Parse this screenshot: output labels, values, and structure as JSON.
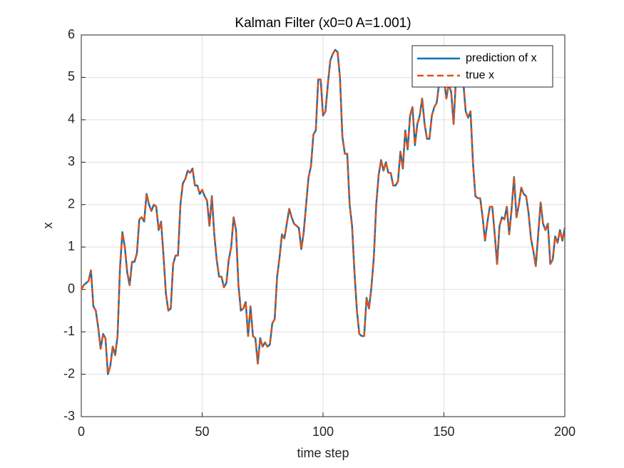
{
  "chart_data": {
    "type": "line",
    "title": "Kalman Filter (x0=0 A=1.001)",
    "x_label": "time step",
    "y_label": "x",
    "x": [
      0,
      1,
      2,
      3,
      4,
      5,
      6,
      7,
      8,
      9,
      10,
      11,
      12,
      13,
      14,
      15,
      16,
      17,
      18,
      19,
      20,
      21,
      22,
      23,
      24,
      25,
      26,
      27,
      28,
      29,
      30,
      31,
      32,
      33,
      34,
      35,
      36,
      37,
      38,
      39,
      40,
      41,
      42,
      43,
      44,
      45,
      46,
      47,
      48,
      49,
      50,
      51,
      52,
      53,
      54,
      55,
      56,
      57,
      58,
      59,
      60,
      61,
      62,
      63,
      64,
      65,
      66,
      67,
      68,
      69,
      70,
      71,
      72,
      73,
      74,
      75,
      76,
      77,
      78,
      79,
      80,
      81,
      82,
      83,
      84,
      85,
      86,
      87,
      88,
      89,
      90,
      91,
      92,
      93,
      94,
      95,
      96,
      97,
      98,
      99,
      100,
      101,
      102,
      103,
      104,
      105,
      106,
      107,
      108,
      109,
      110,
      111,
      112,
      113,
      114,
      115,
      116,
      117,
      118,
      119,
      120,
      121,
      122,
      123,
      124,
      125,
      126,
      127,
      128,
      129,
      130,
      131,
      132,
      133,
      134,
      135,
      136,
      137,
      138,
      139,
      140,
      141,
      142,
      143,
      144,
      145,
      146,
      147,
      148,
      149,
      150,
      151,
      152,
      153,
      154,
      155,
      156,
      157,
      158,
      159,
      160,
      161,
      162,
      163,
      164,
      165,
      166,
      167,
      168,
      169,
      170,
      171,
      172,
      173,
      174,
      175,
      176,
      177,
      178,
      179,
      180,
      181,
      182,
      183,
      184,
      185,
      186,
      187,
      188,
      189,
      190,
      191,
      192,
      193,
      194,
      195,
      196,
      197,
      198,
      199,
      200
    ],
    "series": [
      {
        "name": "prediction of x",
        "color": "#0072bd",
        "dashed": false,
        "values": [
          0,
          0.1,
          0.15,
          0.2,
          0.45,
          -0.4,
          -0.5,
          -0.9,
          -1.4,
          -1.05,
          -1.15,
          -2.0,
          -1.8,
          -1.35,
          -1.55,
          -1.1,
          0.5,
          1.35,
          1.0,
          0.4,
          0.1,
          0.65,
          0.65,
          0.85,
          1.65,
          1.7,
          1.6,
          2.25,
          2.0,
          1.85,
          2.0,
          1.95,
          1.4,
          1.6,
          0.8,
          -0.1,
          -0.5,
          -0.45,
          0.6,
          0.8,
          0.8,
          2.0,
          2.5,
          2.6,
          2.8,
          2.75,
          2.85,
          2.45,
          2.45,
          2.25,
          2.35,
          2.2,
          2.1,
          1.5,
          2.2,
          1.3,
          0.7,
          0.3,
          0.3,
          0.05,
          0.15,
          0.7,
          1.0,
          1.7,
          1.4,
          0.1,
          -0.5,
          -0.45,
          -0.3,
          -1.1,
          -0.4,
          -1.1,
          -1.15,
          -1.75,
          -1.15,
          -1.35,
          -1.25,
          -1.35,
          -1.3,
          -0.8,
          -0.7,
          0.3,
          0.75,
          1.3,
          1.2,
          1.55,
          1.9,
          1.7,
          1.55,
          1.5,
          1.45,
          0.95,
          1.35,
          2.0,
          2.65,
          2.9,
          3.65,
          3.75,
          4.95,
          4.95,
          4.1,
          4.2,
          4.85,
          5.4,
          5.55,
          5.65,
          5.6,
          5.0,
          3.6,
          3.2,
          3.2,
          2.0,
          1.5,
          0.4,
          -0.5,
          -1.05,
          -1.1,
          -1.1,
          -0.2,
          -0.45,
          0.05,
          0.75,
          2.0,
          2.7,
          3.05,
          2.8,
          3.0,
          2.75,
          2.75,
          2.45,
          2.45,
          2.55,
          3.25,
          2.85,
          3.75,
          3.3,
          4.1,
          4.3,
          3.4,
          3.9,
          4.1,
          4.5,
          3.9,
          3.55,
          3.55,
          4.1,
          4.3,
          4.4,
          4.85,
          4.9,
          5.0,
          4.5,
          4.85,
          4.65,
          3.9,
          5.0,
          4.8,
          5.0,
          4.9,
          4.2,
          4.05,
          4.2,
          3.0,
          2.2,
          2.15,
          2.15,
          1.7,
          1.15,
          1.6,
          1.95,
          1.95,
          1.3,
          0.6,
          1.5,
          1.7,
          1.65,
          1.95,
          1.3,
          1.9,
          2.65,
          1.7,
          2.0,
          2.4,
          2.25,
          2.2,
          1.8,
          1.2,
          0.9,
          0.55,
          1.3,
          2.05,
          1.55,
          1.4,
          1.55,
          0.6,
          0.7,
          1.25,
          1.1,
          1.4,
          1.15,
          1.45
        ]
      },
      {
        "name": "true x",
        "color": "#d95319",
        "dashed": true,
        "values": [
          0,
          0.1,
          0.15,
          0.2,
          0.45,
          -0.4,
          -0.5,
          -0.9,
          -1.4,
          -1.05,
          -1.15,
          -2.0,
          -1.8,
          -1.35,
          -1.55,
          -1.1,
          0.5,
          1.35,
          1.0,
          0.4,
          0.1,
          0.65,
          0.65,
          0.85,
          1.65,
          1.7,
          1.6,
          2.25,
          2.0,
          1.85,
          2.0,
          1.95,
          1.4,
          1.6,
          0.8,
          -0.1,
          -0.5,
          -0.45,
          0.6,
          0.8,
          0.8,
          2.0,
          2.5,
          2.6,
          2.8,
          2.75,
          2.85,
          2.45,
          2.45,
          2.25,
          2.35,
          2.2,
          2.1,
          1.5,
          2.2,
          1.3,
          0.7,
          0.3,
          0.3,
          0.05,
          0.15,
          0.7,
          1.0,
          1.7,
          1.4,
          0.1,
          -0.5,
          -0.45,
          -0.3,
          -1.1,
          -0.4,
          -1.1,
          -1.15,
          -1.75,
          -1.15,
          -1.35,
          -1.25,
          -1.35,
          -1.3,
          -0.8,
          -0.7,
          0.3,
          0.75,
          1.3,
          1.2,
          1.55,
          1.9,
          1.7,
          1.55,
          1.5,
          1.45,
          0.95,
          1.35,
          2.0,
          2.65,
          2.9,
          3.65,
          3.75,
          4.95,
          4.95,
          4.1,
          4.2,
          4.85,
          5.4,
          5.55,
          5.65,
          5.6,
          5.0,
          3.6,
          3.2,
          3.2,
          2.0,
          1.5,
          0.4,
          -0.5,
          -1.05,
          -1.1,
          -1.1,
          -0.2,
          -0.45,
          0.05,
          0.75,
          2.0,
          2.7,
          3.05,
          2.8,
          3.0,
          2.75,
          2.75,
          2.45,
          2.45,
          2.55,
          3.25,
          2.85,
          3.75,
          3.3,
          4.1,
          4.3,
          3.4,
          3.9,
          4.1,
          4.5,
          3.9,
          3.55,
          3.55,
          4.1,
          4.3,
          4.4,
          4.85,
          4.9,
          5.0,
          4.5,
          4.85,
          4.65,
          3.9,
          5.0,
          4.8,
          5.0,
          4.9,
          4.2,
          4.05,
          4.2,
          3.0,
          2.2,
          2.15,
          2.15,
          1.7,
          1.15,
          1.6,
          1.95,
          1.95,
          1.3,
          0.6,
          1.5,
          1.7,
          1.65,
          1.95,
          1.3,
          1.9,
          2.65,
          1.7,
          2.0,
          2.4,
          2.25,
          2.2,
          1.8,
          1.2,
          0.9,
          0.55,
          1.3,
          2.05,
          1.55,
          1.4,
          1.55,
          0.6,
          0.7,
          1.25,
          1.1,
          1.4,
          1.15,
          1.45
        ]
      }
    ],
    "xlim": [
      0,
      200
    ],
    "xticks": [
      0,
      50,
      100,
      150,
      200
    ],
    "ylim": [
      -3,
      6
    ],
    "yticks": [
      -3,
      -2,
      -1,
      0,
      1,
      2,
      3,
      4,
      5,
      6
    ],
    "grid": true,
    "legend": "upper right"
  }
}
